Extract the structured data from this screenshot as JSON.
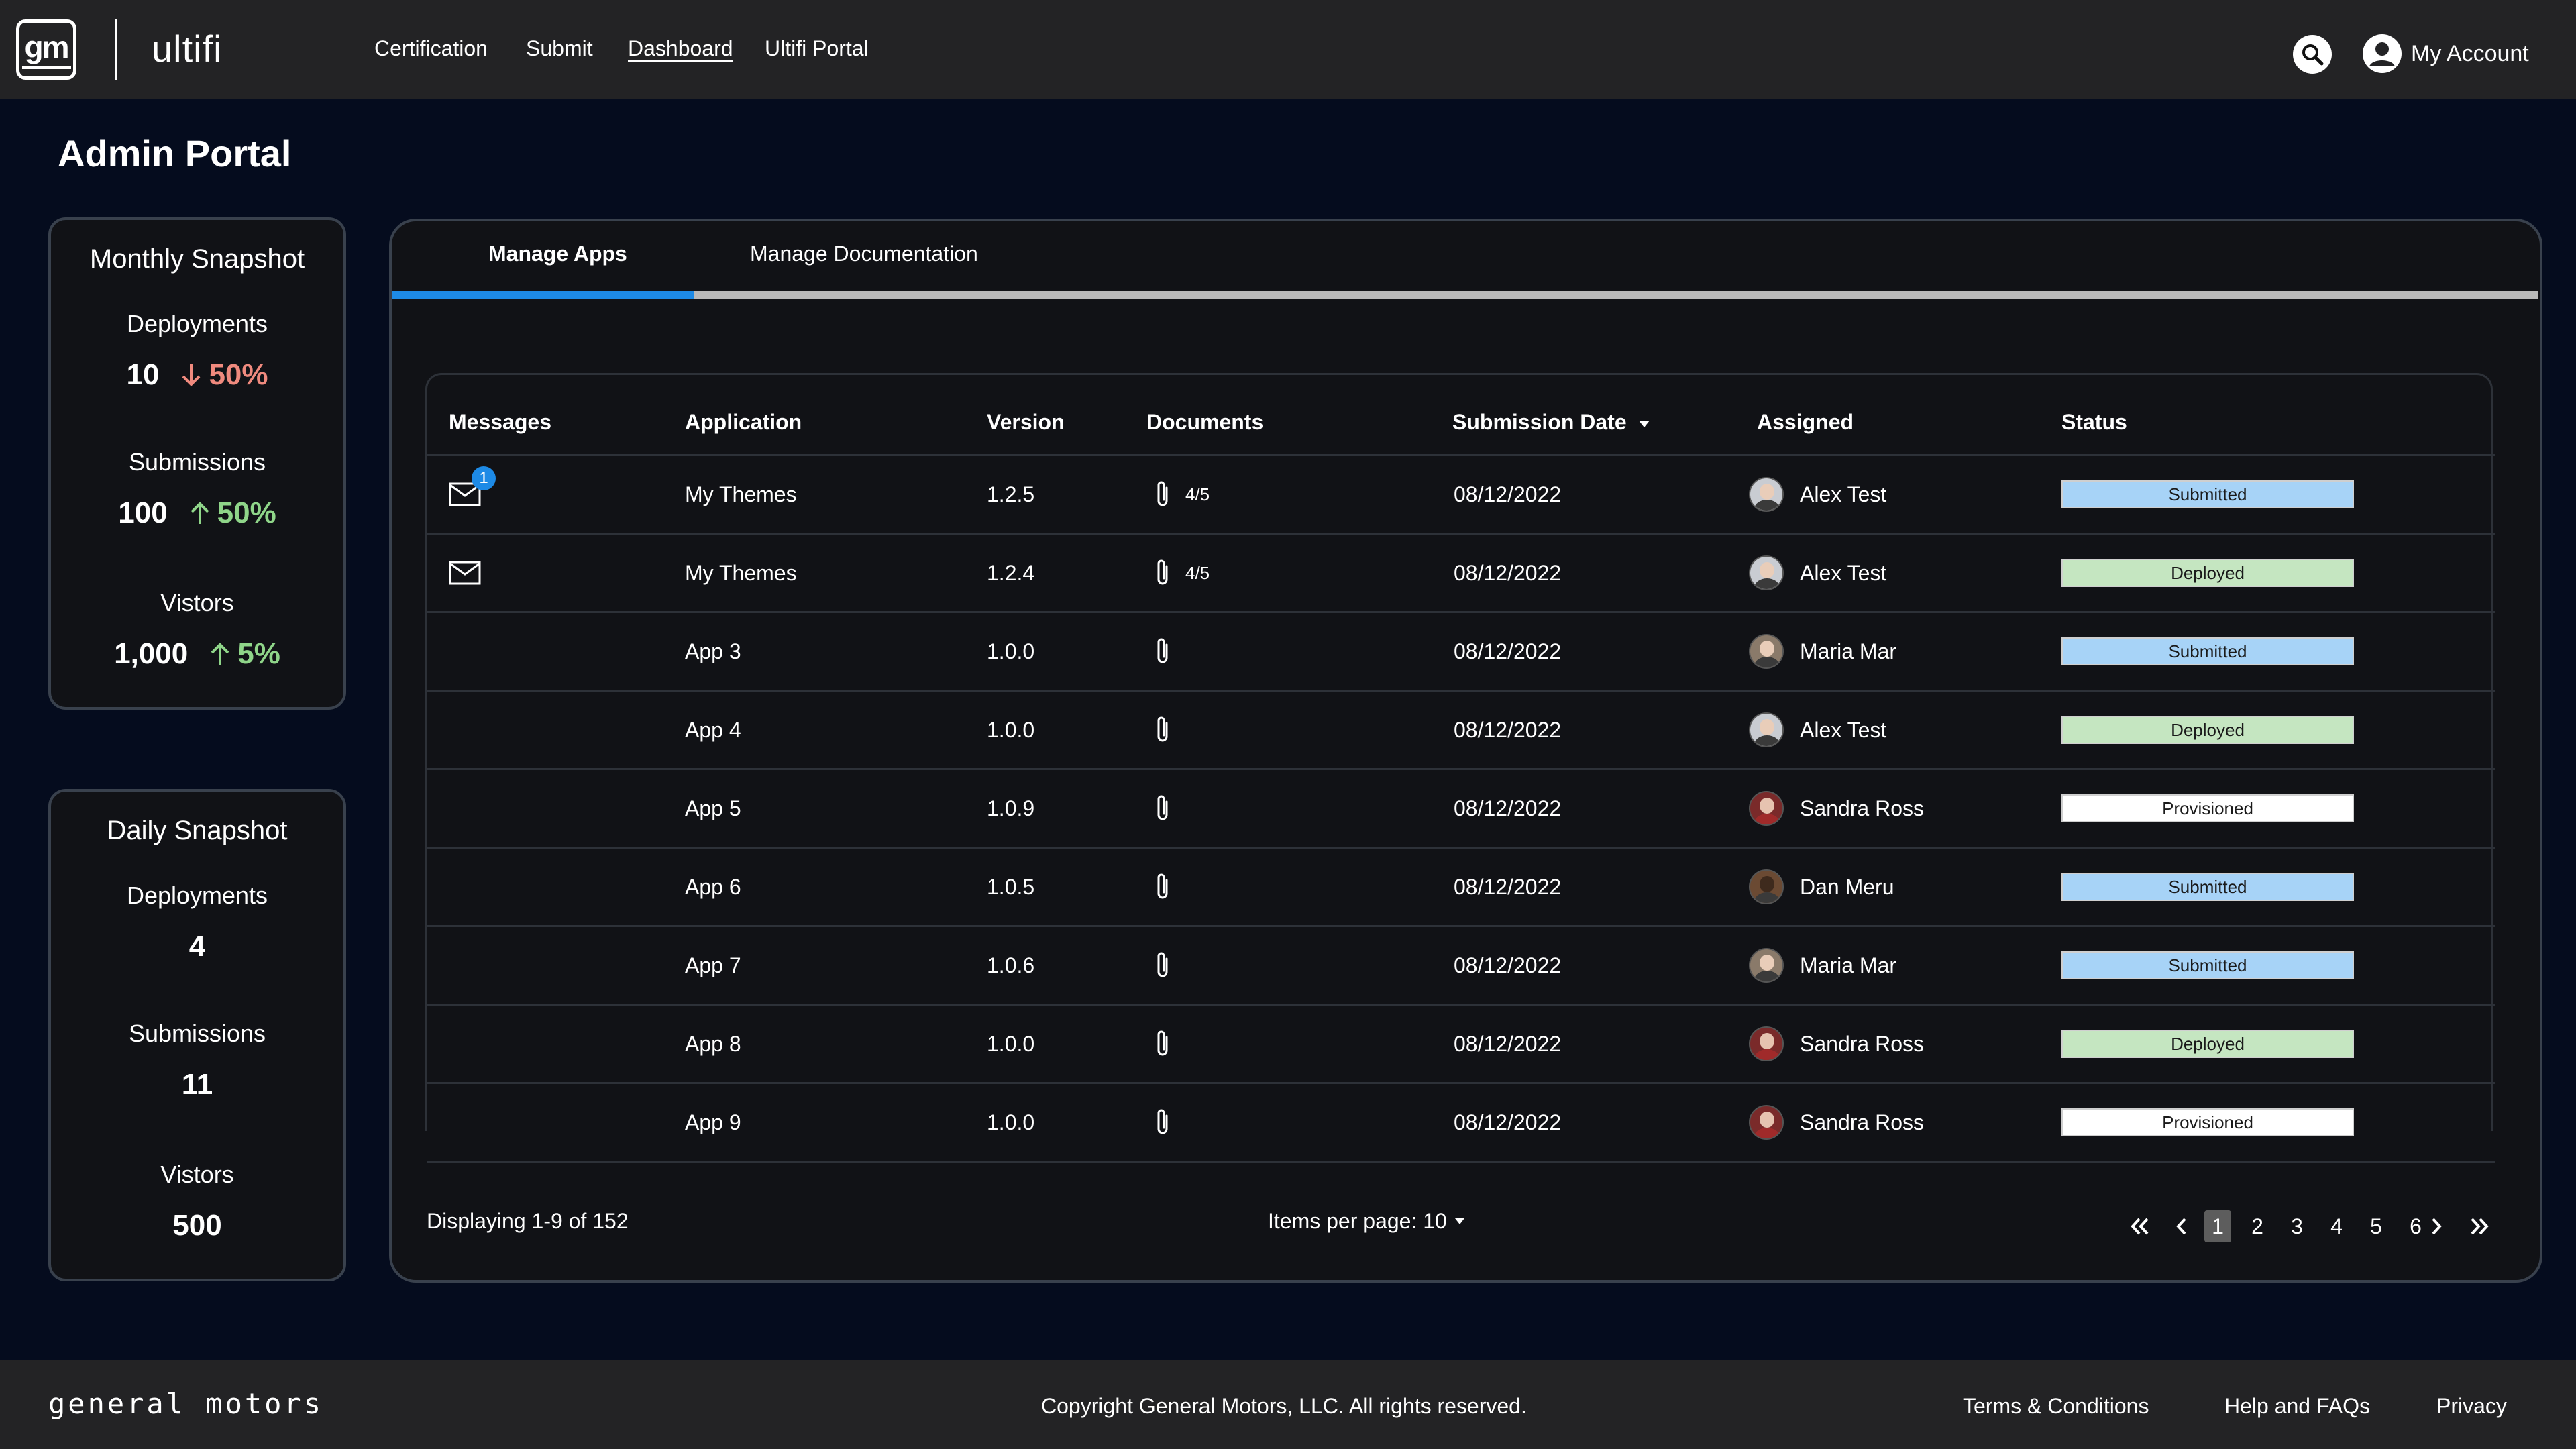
{
  "header": {
    "logo_text": "gm",
    "brand": "ultifi",
    "nav": [
      {
        "label": "Certification",
        "active": false
      },
      {
        "label": "Submit",
        "active": false
      },
      {
        "label": "Dashboard",
        "active": true
      },
      {
        "label": "Ultifi Portal",
        "active": false
      }
    ],
    "search_icon": "search-icon",
    "account_label": "My Account"
  },
  "page_title": "Admin Portal",
  "monthly": {
    "title": "Monthly Snapshot",
    "stats": [
      {
        "label": "Deployments",
        "value": "10",
        "trend": "down",
        "change": "50%"
      },
      {
        "label": "Submissions",
        "value": "100",
        "trend": "up",
        "change": "50%"
      },
      {
        "label": "Vistors",
        "value": "1,000",
        "trend": "up",
        "change": "5%"
      }
    ]
  },
  "daily": {
    "title": "Daily Snapshot",
    "stats": [
      {
        "label": "Deployments",
        "value": "4"
      },
      {
        "label": "Submissions",
        "value": "11"
      },
      {
        "label": "Vistors",
        "value": "500"
      }
    ]
  },
  "tabs": [
    {
      "label": "Manage Apps",
      "active": true
    },
    {
      "label": "Manage Documentation",
      "active": false
    }
  ],
  "table": {
    "columns": [
      "Messages",
      "Application",
      "Version",
      "Documents",
      "Submission Date",
      "Assigned",
      "Status"
    ],
    "rows": [
      {
        "message": true,
        "badge": "1",
        "app": "My Themes",
        "version": "1.2.5",
        "docs": "4/5",
        "date": "08/12/2022",
        "assigned": "Alex Test",
        "avatar": "alex",
        "status": "Submitted"
      },
      {
        "message": true,
        "badge": "",
        "app": "My Themes",
        "version": "1.2.4",
        "docs": "4/5",
        "date": "08/12/2022",
        "assigned": "Alex Test",
        "avatar": "alex",
        "status": "Deployed"
      },
      {
        "message": false,
        "badge": "",
        "app": "App 3",
        "version": "1.0.0",
        "docs": "",
        "date": "08/12/2022",
        "assigned": "Maria Mar",
        "avatar": "maria",
        "status": "Submitted"
      },
      {
        "message": false,
        "badge": "",
        "app": "App 4",
        "version": "1.0.0",
        "docs": "",
        "date": "08/12/2022",
        "assigned": "Alex Test",
        "avatar": "alex",
        "status": "Deployed"
      },
      {
        "message": false,
        "badge": "",
        "app": "App 5",
        "version": "1.0.9",
        "docs": "",
        "date": "08/12/2022",
        "assigned": "Sandra Ross",
        "avatar": "sandra",
        "status": "Provisioned"
      },
      {
        "message": false,
        "badge": "",
        "app": "App 6",
        "version": "1.0.5",
        "docs": "",
        "date": "08/12/2022",
        "assigned": "Dan Meru",
        "avatar": "dan",
        "status": "Submitted"
      },
      {
        "message": false,
        "badge": "",
        "app": "App 7",
        "version": "1.0.6",
        "docs": "",
        "date": "08/12/2022",
        "assigned": "Maria Mar",
        "avatar": "maria",
        "status": "Submitted"
      },
      {
        "message": false,
        "badge": "",
        "app": "App 8",
        "version": "1.0.0",
        "docs": "",
        "date": "08/12/2022",
        "assigned": "Sandra Ross",
        "avatar": "sandra",
        "status": "Deployed"
      },
      {
        "message": false,
        "badge": "",
        "app": "App 9",
        "version": "1.0.0",
        "docs": "",
        "date": "08/12/2022",
        "assigned": "Sandra Ross",
        "avatar": "sandra",
        "status": "Provisioned"
      }
    ]
  },
  "status_colors": {
    "Submitted": "#a7d3f7",
    "Deployed": "#c5e6c1",
    "Provisioned": "#ffffff"
  },
  "pagination": {
    "displaying": "Displaying 1-9 of 152",
    "items_per_page": "Items per page: 10",
    "pages": [
      "1",
      "2",
      "3",
      "4",
      "5",
      "6"
    ],
    "current": "1"
  },
  "footer": {
    "brand": "general motors",
    "copyright": "Copyright General Motors, LLC.  All rights reserved.",
    "links": [
      "Terms & Conditions",
      "Help and FAQs",
      "Privacy"
    ]
  },
  "colors": {
    "background": "#050c1e",
    "header": "#232325",
    "panel": "#111216",
    "accent": "#1d8ae6",
    "trend_down": "#f08a7e",
    "trend_up": "#8fd589"
  }
}
